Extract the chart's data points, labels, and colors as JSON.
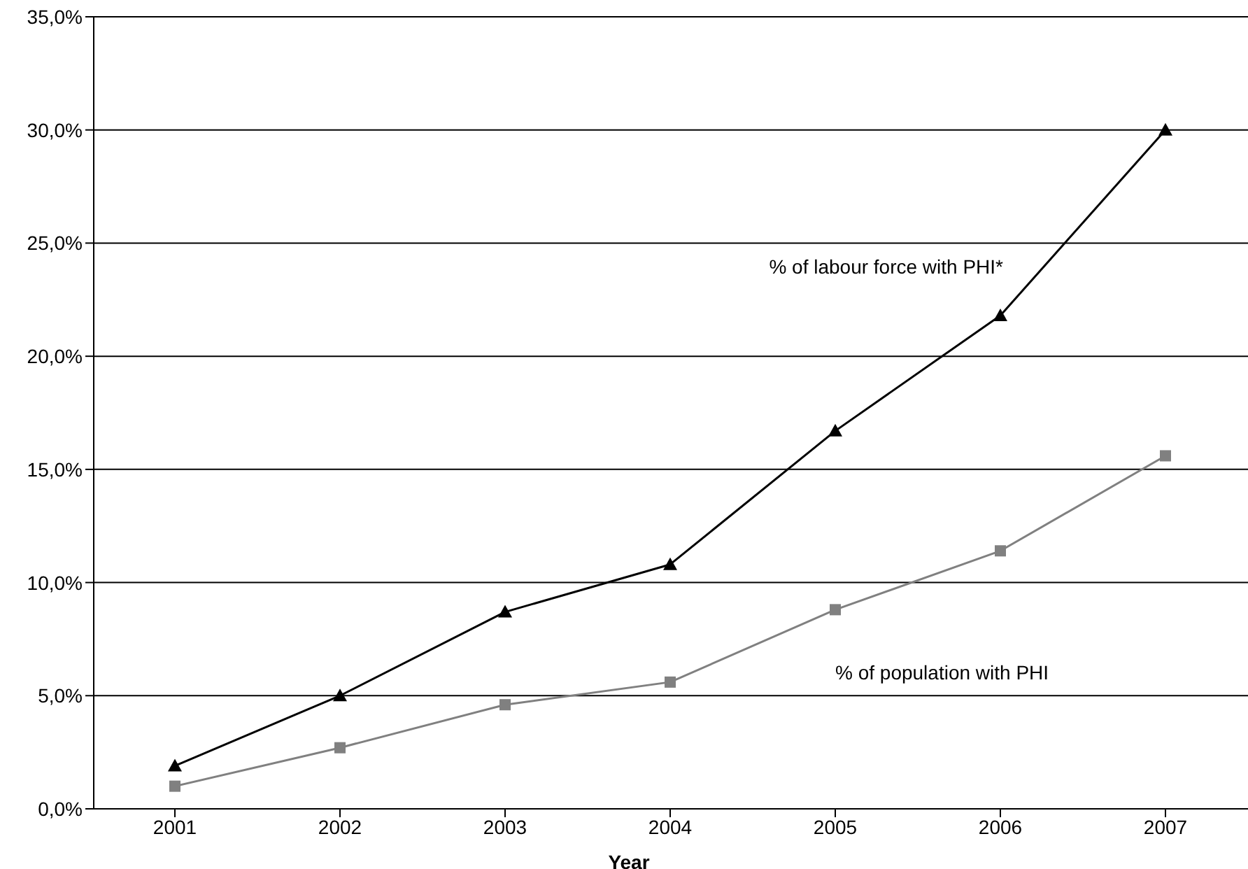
{
  "chart_data": {
    "type": "line",
    "xlabel": "Year",
    "categories": [
      "2001",
      "2002",
      "2003",
      "2004",
      "2005",
      "2006",
      "2007"
    ],
    "series": [
      {
        "name": "% of labour force with PHI*",
        "color": "#000000",
        "marker": "triangle",
        "values": [
          1.9,
          5.0,
          8.7,
          10.8,
          16.7,
          21.8,
          30.0
        ]
      },
      {
        "name": "% of population with PHI",
        "color": "#808080",
        "marker": "square",
        "values": [
          1.0,
          2.7,
          4.6,
          5.6,
          8.8,
          11.4,
          15.6
        ]
      }
    ],
    "ylim": [
      0,
      35
    ],
    "yticks": [
      {
        "value": 0,
        "label": "0,0%"
      },
      {
        "value": 5,
        "label": "5,0%"
      },
      {
        "value": 10,
        "label": "10,0%"
      },
      {
        "value": 15,
        "label": "15,0%"
      },
      {
        "value": 20,
        "label": "20,0%"
      },
      {
        "value": 25,
        "label": "25,0%"
      },
      {
        "value": 30,
        "label": "30,0%"
      },
      {
        "value": 35,
        "label": "35,0%"
      }
    ],
    "grid": "y",
    "legend": false,
    "line_style": "solid"
  }
}
